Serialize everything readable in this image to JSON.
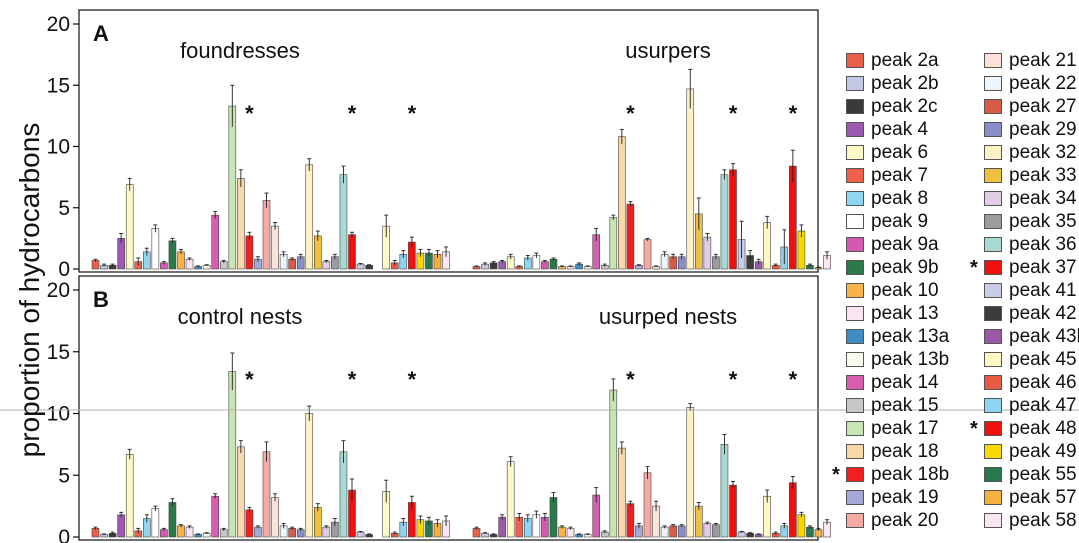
{
  "ylabel": "proportion of hydrocarbons",
  "legend": [
    {
      "name": "peak 2a",
      "color": "#e8604a",
      "sig": false
    },
    {
      "name": "peak 2b",
      "color": "#c4c6e6",
      "sig": false
    },
    {
      "name": "peak 2c",
      "color": "#3a3a3a",
      "sig": false
    },
    {
      "name": "peak 4",
      "color": "#9b59b0",
      "sig": false
    },
    {
      "name": "peak 6",
      "color": "#fdf9c8",
      "sig": false
    },
    {
      "name": "peak 7",
      "color": "#f0604a",
      "sig": false
    },
    {
      "name": "peak 8",
      "color": "#8ed6f2",
      "sig": false
    },
    {
      "name": "peak 9",
      "color": "#ffffff",
      "sig": false
    },
    {
      "name": "peak 9a",
      "color": "#d45ab0",
      "sig": false
    },
    {
      "name": "peak 9b",
      "color": "#2a7a4a",
      "sig": false
    },
    {
      "name": "peak 10",
      "color": "#f6b44a",
      "sig": false
    },
    {
      "name": "peak 13",
      "color": "#fce4f2",
      "sig": false
    },
    {
      "name": "peak 13a",
      "color": "#3e8ec4",
      "sig": false
    },
    {
      "name": "peak 13b",
      "color": "#fbfbf0",
      "sig": false
    },
    {
      "name": "peak 14",
      "color": "#d95eb2",
      "sig": false
    },
    {
      "name": "peak 15",
      "color": "#c8c8c8",
      "sig": false
    },
    {
      "name": "peak 17",
      "color": "#c8e6b4",
      "sig": false
    },
    {
      "name": "peak 18",
      "color": "#f8d8a8",
      "sig": false
    },
    {
      "name": "peak 18b",
      "color": "#f02020",
      "sig": true
    },
    {
      "name": "peak 19",
      "color": "#a8a8d8",
      "sig": false
    },
    {
      "name": "peak 20",
      "color": "#f6aaa6",
      "sig": false
    },
    {
      "name": "peak 21",
      "color": "#fde2da",
      "sig": false
    },
    {
      "name": "peak 22",
      "color": "#ecf6fc",
      "sig": false
    },
    {
      "name": "peak 27",
      "color": "#d95a48",
      "sig": false
    },
    {
      "name": "peak 29",
      "color": "#8c8ec8",
      "sig": false
    },
    {
      "name": "peak 32",
      "color": "#fdf0c4",
      "sig": false
    },
    {
      "name": "peak 33",
      "color": "#f0c040",
      "sig": false
    },
    {
      "name": "peak 34",
      "color": "#e2cce6",
      "sig": false
    },
    {
      "name": "peak 35",
      "color": "#9c9c9c",
      "sig": false
    },
    {
      "name": "peak 36",
      "color": "#a8dad4",
      "sig": false
    },
    {
      "name": "peak 37",
      "color": "#f01010",
      "sig": true
    },
    {
      "name": "peak 41",
      "color": "#c8cce8",
      "sig": false
    },
    {
      "name": "peak 42",
      "color": "#3c3c3c",
      "sig": false
    },
    {
      "name": "peak 43b",
      "color": "#9a58a8",
      "sig": false
    },
    {
      "name": "peak 45",
      "color": "#fdf8c4",
      "sig": false
    },
    {
      "name": "peak 46",
      "color": "#e85a44",
      "sig": false
    },
    {
      "name": "peak 47",
      "color": "#8ed4f0",
      "sig": false
    },
    {
      "name": "peak 48",
      "color": "#f01010",
      "sig": true
    },
    {
      "name": "peak 49",
      "color": "#f8d800",
      "sig": false
    },
    {
      "name": "peak 55",
      "color": "#2a7850",
      "sig": false
    },
    {
      "name": "peak 57",
      "color": "#f4b040",
      "sig": false
    },
    {
      "name": "peak 58",
      "color": "#fce6f4",
      "sig": false
    }
  ],
  "chart_data": [
    {
      "type": "bar",
      "panel": "A",
      "ylim": [
        0,
        20
      ],
      "yticks": [
        "0",
        "5",
        "10",
        "15",
        "20"
      ],
      "groups": [
        {
          "label": "foundresses",
          "values": [
            0.7,
            0.3,
            0.3,
            2.5,
            6.9,
            0.6,
            1.4,
            3.3,
            0.5,
            2.3,
            1.4,
            0.8,
            0.2,
            0.3,
            4.4,
            0.6,
            13.3,
            7.4,
            2.7,
            0.8,
            5.6,
            3.5,
            1.2,
            0.8,
            1.0,
            8.5,
            2.7,
            0.6,
            1.0,
            7.7,
            2.8,
            0.4,
            0.3,
            0.0,
            3.5,
            0.5,
            1.2,
            2.2,
            1.3,
            1.3,
            1.2,
            1.4
          ],
          "errors": [
            0.1,
            0.1,
            0.1,
            0.4,
            0.5,
            0.3,
            0.3,
            0.3,
            0.1,
            0.2,
            0.2,
            0.1,
            0.05,
            0.05,
            0.3,
            0.1,
            1.7,
            0.7,
            0.3,
            0.2,
            0.6,
            0.3,
            0.2,
            0.1,
            0.2,
            0.5,
            0.4,
            0.1,
            0.2,
            0.7,
            0.2,
            0.05,
            0.05,
            0.0,
            0.9,
            0.2,
            0.3,
            0.4,
            0.3,
            0.3,
            0.3,
            0.4
          ]
        },
        {
          "label": "usurpers",
          "values": [
            0.2,
            0.4,
            0.5,
            0.6,
            1.0,
            0.2,
            0.9,
            1.1,
            0.6,
            0.8,
            0.2,
            0.2,
            0.4,
            0.2,
            2.8,
            0.3,
            4.2,
            10.8,
            5.3,
            0.3,
            2.4,
            0.2,
            1.2,
            1.0,
            1.0,
            14.7,
            4.5,
            2.6,
            1.0,
            7.7,
            8.1,
            2.4,
            1.1,
            0.6,
            3.8,
            0.3,
            1.8,
            8.4,
            3.1,
            0.3,
            0.1,
            1.1
          ],
          "errors": [
            0.05,
            0.1,
            0.1,
            0.1,
            0.2,
            0.05,
            0.2,
            0.2,
            0.1,
            0.1,
            0.05,
            0.05,
            0.1,
            0.05,
            0.5,
            0.1,
            0.2,
            0.6,
            0.2,
            0.05,
            0.1,
            0.05,
            0.2,
            0.2,
            0.2,
            1.6,
            1.3,
            0.3,
            0.2,
            0.4,
            0.5,
            1.5,
            0.4,
            0.2,
            0.5,
            0.1,
            1.4,
            1.3,
            0.5,
            0.1,
            0.05,
            0.3
          ]
        }
      ],
      "sig_labels": [
        "*",
        "*",
        "*",
        "*",
        "*",
        "*"
      ]
    },
    {
      "type": "bar",
      "panel": "B",
      "ylim": [
        0,
        20
      ],
      "yticks": [
        "0",
        "5",
        "10",
        "15",
        "20"
      ],
      "groups": [
        {
          "label": "control nests",
          "values": [
            0.7,
            0.2,
            0.3,
            1.8,
            6.7,
            0.5,
            1.5,
            2.3,
            0.6,
            2.8,
            0.9,
            0.8,
            0.2,
            0.3,
            3.3,
            0.6,
            13.4,
            7.3,
            2.2,
            0.8,
            6.9,
            3.2,
            0.9,
            0.7,
            0.6,
            10.0,
            2.4,
            0.8,
            1.2,
            6.9,
            3.8,
            0.4,
            0.2,
            0.0,
            3.7,
            0.3,
            1.2,
            2.8,
            1.4,
            1.3,
            1.1,
            1.3
          ],
          "errors": [
            0.1,
            0.05,
            0.1,
            0.2,
            0.4,
            0.2,
            0.3,
            0.2,
            0.1,
            0.3,
            0.1,
            0.1,
            0.05,
            0.05,
            0.2,
            0.1,
            1.5,
            0.5,
            0.2,
            0.1,
            0.8,
            0.3,
            0.2,
            0.1,
            0.1,
            0.6,
            0.3,
            0.1,
            0.3,
            0.9,
            0.9,
            0.05,
            0.05,
            0.0,
            0.9,
            0.1,
            0.3,
            0.5,
            0.3,
            0.3,
            0.3,
            0.4
          ]
        },
        {
          "label": "usurped nests",
          "values": [
            0.7,
            0.3,
            0.2,
            1.6,
            6.1,
            1.6,
            1.5,
            1.8,
            1.6,
            3.2,
            0.8,
            0.7,
            0.2,
            0.2,
            3.4,
            0.4,
            11.9,
            7.2,
            2.7,
            0.9,
            5.2,
            2.5,
            0.8,
            0.9,
            0.9,
            10.5,
            2.5,
            1.1,
            1.0,
            7.5,
            4.2,
            0.4,
            0.3,
            0.2,
            3.3,
            0.3,
            0.9,
            4.4,
            1.8,
            0.8,
            0.6,
            1.2
          ],
          "errors": [
            0.1,
            0.05,
            0.05,
            0.2,
            0.4,
            0.3,
            0.3,
            0.3,
            0.3,
            0.4,
            0.1,
            0.1,
            0.05,
            0.05,
            0.6,
            0.1,
            0.9,
            0.5,
            0.2,
            0.2,
            0.5,
            0.4,
            0.1,
            0.1,
            0.1,
            0.3,
            0.3,
            0.1,
            0.1,
            0.8,
            0.3,
            0.05,
            0.05,
            0.05,
            0.5,
            0.1,
            0.2,
            0.5,
            0.2,
            0.1,
            0.1,
            0.2
          ]
        }
      ],
      "sig_labels": [
        "*",
        "*",
        "*",
        "*",
        "*",
        "*"
      ]
    }
  ]
}
